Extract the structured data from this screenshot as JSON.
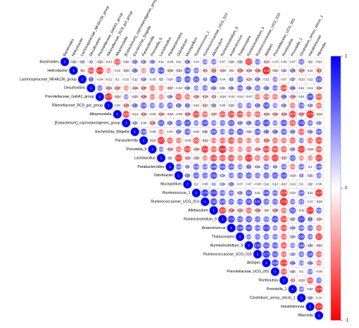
{
  "chart_data": {
    "type": "corrplot",
    "labels": [
      "Bacteroides",
      "Helicobacter",
      "Lachnospiraceae_NK4A136_group",
      "Desulfovibrio",
      "Prevotellaceae_Ga6A1_group",
      "Rikenellaceae_RC9_gut_group",
      "Alloprevotella",
      "[Eubacterium]_coprostanoligenes_group",
      "Escherichia_Shigella",
      "Parasutterella",
      "Prevotella_9",
      "Lactobacillus",
      "Parabacteroides",
      "Odoribacter",
      "Mucispirillum",
      "Ruminococcus_1",
      "Ruminococcaceae_UCG_014",
      "Allobaculum",
      "Ruminiclostridium_9",
      "Anaerotruncus",
      "Thalassospira",
      "Ruminiclostridium_5",
      "Ruminococcaceae_UCG_010",
      "Alistipes",
      "Prevotellaceae_UCG_001",
      "Romboutsia",
      "Prevotella_1",
      "Clostridium_sensu_stricto_1",
      "Intestinimonas",
      "Rikenella"
    ],
    "values": [
      [
        1,
        0.18,
        0.22,
        0.2,
        -0.22,
        -0.13,
        -0.6,
        0.16,
        0.35,
        0.32,
        0.33,
        0.11,
        -0.08,
        0.11,
        0.36,
        0.04,
        0.46,
        0.48,
        0.07,
        0.18,
        0.22,
        -0.7,
        0.49,
        -0.23,
        -0.03,
        0.06,
        0.07,
        0.5,
        -0.2,
        0.13
      ],
      [
        1,
        -0.2,
        -0.63,
        -0.76,
        -0.41,
        0.03,
        -0.23,
        0.38,
        -0.41,
        0.52,
        0.64,
        -0.26,
        -0.23,
        0.61,
        0.49,
        -0.3,
        -0.4,
        -0.25,
        -0.2,
        -0.39,
        -0.29,
        -0.36,
        -0.84,
        -0.22,
        0.23,
        0.35,
        -0.36,
        0.11,
        -0.4
      ],
      [
        1,
        0.4,
        -0.04,
        -0.12,
        0.1,
        0.02,
        0.12,
        0.29,
        -0.05,
        0.2,
        0.14,
        0.55,
        0.63,
        0.6,
        0.3,
        0.75,
        0.04,
        0.3,
        0.57,
        -0.26,
        0.34,
        0.12,
        0.43,
        0.07,
        0.27,
        -0.15,
        0.12,
        0.6
      ],
      [
        1,
        0.47,
        -0.34,
        -0.37,
        -0.42,
        -0.29,
        -0.37,
        -0.5,
        -0.43,
        -0.27,
        -0.02,
        0.32,
        0.42,
        0.49,
        0.34,
        0.21,
        0.32,
        0.55,
        0.38,
        0.5,
        0.38,
        0.49,
        -0.66,
        0.36,
        0.14,
        0.04,
        -0.32
      ],
      [
        1,
        -0.77,
        -0.24,
        0.41,
        -0.22,
        -0.36,
        -0.48,
        -0.43,
        0.29,
        -0.6,
        -0.5,
        -0.32,
        -0.25,
        -0.3,
        -0.16,
        -0.04,
        -0.14,
        -0.07,
        -0.48,
        -0.55,
        -0.5,
        0.39,
        -0.36,
        0.14,
        0.67,
        -0.62
      ],
      [
        1,
        0.09,
        -0.36,
        0.38,
        0.58,
        0.48,
        0.47,
        0.55,
        0.39,
        0.4,
        0.13,
        -0.27,
        0.31,
        0.09,
        0.19,
        0.44,
        0.49,
        0.39,
        0.64,
        0.42,
        0.32,
        -0.49,
        0.56,
        0.28,
        -0.54
      ],
      [
        1,
        -0.69,
        -0.14,
        -0.33,
        -0.09,
        -0.33,
        -0.18,
        -0.09,
        -0.36,
        -0.69,
        -0.55,
        -0.27,
        -0.62,
        -0.69,
        -0.66,
        -0.49,
        -0.57,
        -0.28,
        -0.32,
        -0.33,
        -0.71,
        -0.37,
        -0.79,
        -0.19
      ],
      [
        1,
        0.26,
        0.09,
        -0.38,
        0.6,
        0.36,
        0.57,
        0.67,
        0.46,
        0.66,
        0.48,
        0.51,
        0.6,
        0.33,
        0.38,
        0.57,
        0.69,
        0.45,
        0.64,
        -0.6,
        0.69,
        0.49,
        0.31
      ],
      [
        1,
        0.59,
        -0.09,
        -0.42,
        0.02,
        0.37,
        0.58,
        0.08,
        0.22,
        0.6,
        0.48,
        0.56,
        0.6,
        0.19,
        0.59,
        0.36,
        0.38,
        0.57,
        0.37,
        -0.59,
        0.32,
        0.57
      ],
      [
        1,
        -0.18,
        -0.77,
        -0.57,
        -0.49,
        -0.09,
        -0.62,
        -0.22,
        -0.49,
        -0.56,
        -0.65,
        -0.54,
        -0.47,
        -0.44,
        -0.39,
        -0.52,
        -0.5,
        -0.57,
        0.45,
        -0.52,
        -0.69
      ],
      [
        1,
        0.44,
        -0.32,
        -0.5,
        -0.68,
        -0.28,
        -0.74,
        -0.57,
        -0.82,
        -0.48,
        -0.44,
        -0.52,
        -0.35,
        -0.69,
        -0.67,
        -0.57,
        0.31,
        -0.74,
        -0.19,
        -0.61
      ],
      [
        1,
        0.2,
        -0.74,
        -0.29,
        -0.26,
        -0.45,
        -0.69,
        -0.62,
        -0.65,
        -0.48,
        -0.78,
        -0.5,
        -0.56,
        -0.72,
        -0.27,
        0.57,
        -0.42,
        -0.44,
        -0.71
      ],
      [
        1,
        0.53,
        0.3,
        0.56,
        0.49,
        0.66,
        0.62,
        0.59,
        0.44,
        0.4,
        0.23,
        0.52,
        0.3,
        0.52,
        -0.48,
        0.52,
        0.1,
        0.59
      ],
      [
        1,
        0.34,
        0.58,
        0.54,
        0.69,
        0.24,
        0.49,
        0.56,
        0.59,
        0.51,
        0.57,
        0.61,
        0.64,
        -0.18,
        0.3,
        0.21,
        0.48
      ],
      [
        1,
        0.1,
        0.08,
        0.2,
        0.24,
        0.35,
        0.07,
        0.07,
        -0.08,
        0.11,
        0.12,
        -0.17,
        -0.12,
        0.1,
        -0.2,
        0.06
      ],
      [
        1,
        0.74,
        0.73,
        0.53,
        0.52,
        0.31,
        0.6,
        0.11,
        0.64,
        0.53,
        -0.76,
        0.13,
        0.57,
        0.11,
        -0.78
      ],
      [
        1,
        0.69,
        0.63,
        0.54,
        0.56,
        0.65,
        0.81,
        0.56,
        0.55,
        -0.82,
        0.48,
        0.5,
        0.02,
        -0.18
      ],
      [
        1,
        -0.7,
        -0.39,
        -0.34,
        -0.54,
        -0.36,
        -0.2,
        -0.35,
        -0.5,
        0.6,
        -0.11,
        -0.77,
        0.53
      ],
      [
        1,
        0.74,
        0.58,
        0.61,
        0.54,
        0.5,
        0.68,
        -0.68,
        0.27,
        0.7,
        0.4,
        -0.26
      ],
      [
        1,
        0.69,
        0.67,
        0.55,
        0.71,
        0.44,
        -0.65,
        0.29,
        0.55,
        0.53,
        -0.53
      ],
      [
        1,
        0.45,
        0.52,
        0.53,
        0.49,
        -0.56,
        0.24,
        0.68,
        0.49,
        -0.7
      ],
      [
        1,
        0.76,
        0.6,
        0.59,
        -0.61,
        0.44,
        0.64,
        0.24,
        -0.22
      ],
      [
        1,
        0.77,
        0.61,
        -0.54,
        0.26,
        0.51,
        0.65,
        -0.58
      ],
      [
        1,
        0.69,
        -0.74,
        0.36,
        0.44,
        0.34,
        -0.48
      ],
      [
        1,
        -0.61,
        0.22,
        0.1,
        0.49,
        -0.05
      ],
      [
        1,
        -0.3,
        -0.19,
        -0.61,
        0.51
      ],
      [
        1,
        0.47,
        0.17,
        -0.78
      ],
      [
        1,
        0.26,
        0.02
      ],
      [
        1,
        -0.8
      ],
      [
        1
      ]
    ],
    "clim": [
      -1,
      1
    ],
    "colorbar_ticks": [
      1,
      0,
      -1
    ],
    "colors": [
      "#ff0000",
      "#ffffff",
      "#0000ff"
    ],
    "grid": true
  }
}
